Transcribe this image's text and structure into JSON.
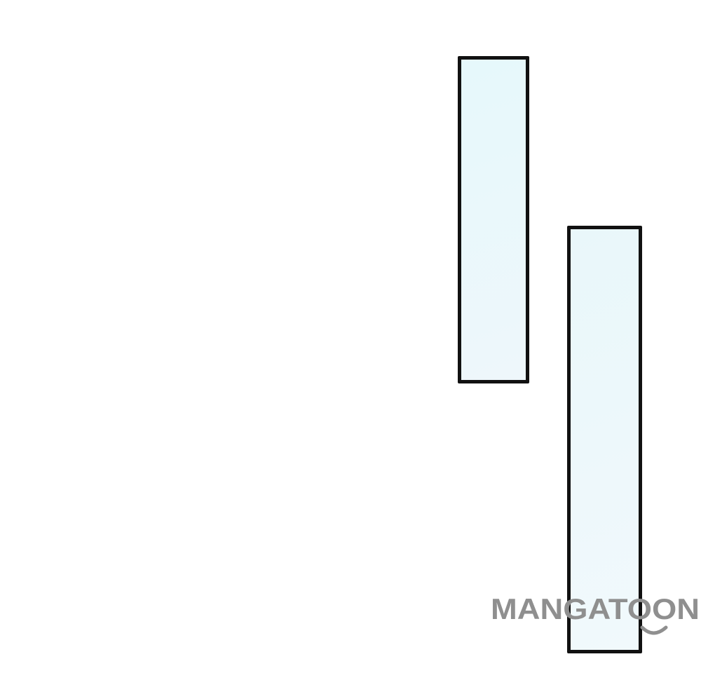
{
  "panels": [
    {
      "name": "upper",
      "fill_top": "#e6f8fb",
      "fill_bottom": "#eef7fb",
      "border": "#111111"
    },
    {
      "name": "lower",
      "fill_top": "#e9f7fa",
      "fill_bottom": "#f1f9fc",
      "border": "#111111"
    }
  ],
  "watermark": {
    "text": "MANGATOON",
    "color": "#8f8f8f"
  }
}
